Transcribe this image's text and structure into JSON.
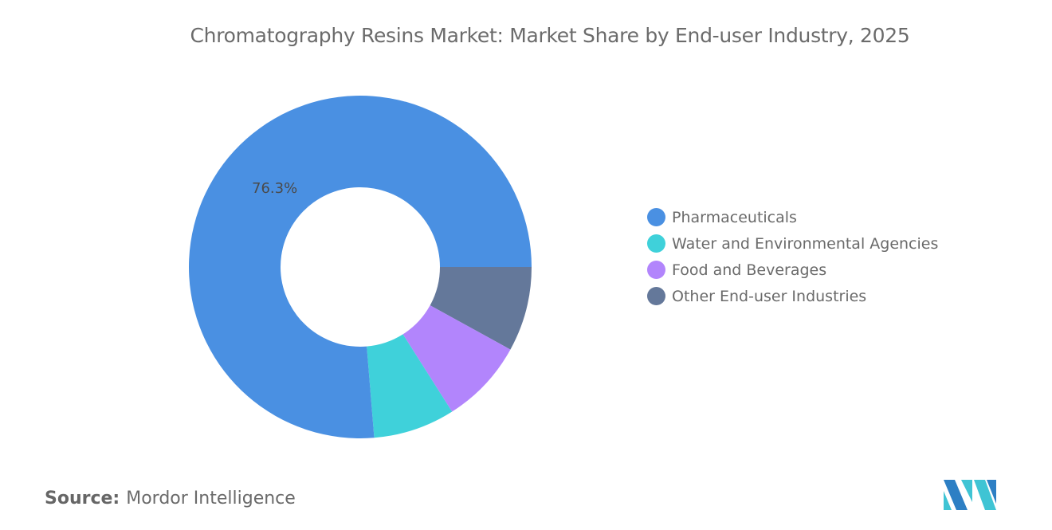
{
  "title": "Chromatography Resins Market: Market Share by End-user Industry, 2025",
  "source_label": "Source:",
  "source_value": "Mordor Intelligence",
  "label_pharma": "76.3%",
  "legend": [
    {
      "label": "Pharmaceuticals",
      "color": "#4a90e2"
    },
    {
      "label": "Water and Environmental Agencies",
      "color": "#3fd1da"
    },
    {
      "label": "Food and Beverages",
      "color": "#b285fc"
    },
    {
      "label": "Other End-user Industries",
      "color": "#64789a"
    }
  ],
  "chart_data": {
    "type": "pie",
    "title": "Chromatography Resins Market: Market Share by End-user Industry, 2025",
    "categories": [
      "Pharmaceuticals",
      "Water and Environmental Agencies",
      "Food and Beverages",
      "Other End-user Industries"
    ],
    "values": [
      76.3,
      7.7,
      8.0,
      8.0
    ],
    "colors": [
      "#4a90e2",
      "#3fd1da",
      "#b285fc",
      "#64789a"
    ],
    "donut": true,
    "data_labels": [
      "76.3%"
    ],
    "legend_position": "right"
  }
}
